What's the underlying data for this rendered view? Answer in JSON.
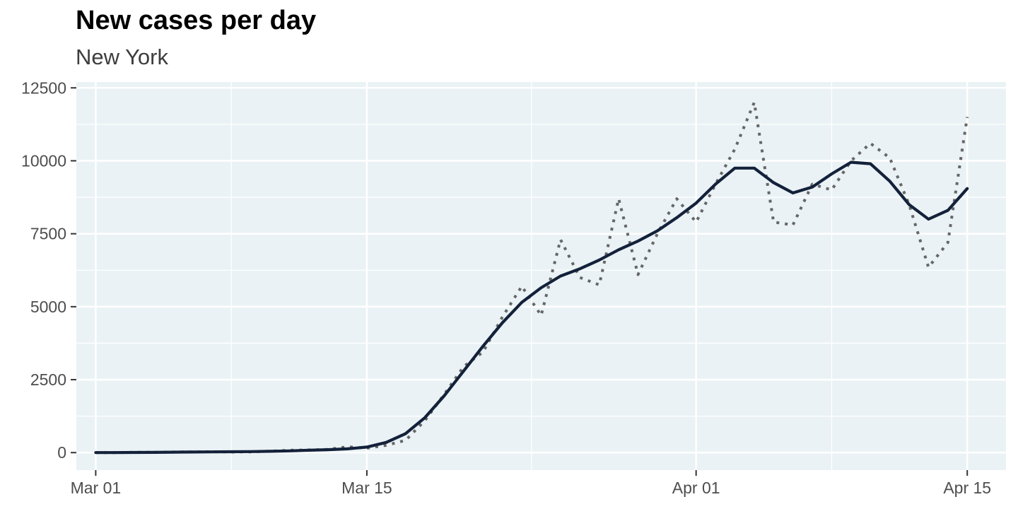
{
  "chart_data": {
    "type": "line",
    "title": "New cases per day",
    "subtitle": "New York",
    "xlabel": "",
    "ylabel": "",
    "ylim": [
      -600,
      12700
    ],
    "xlim": [
      "2020-02-29",
      "2020-04-17"
    ],
    "x_ticks": [
      {
        "date": "2020-03-01",
        "label": "Mar 01"
      },
      {
        "date": "2020-03-15",
        "label": "Mar 15"
      },
      {
        "date": "2020-04-01",
        "label": "Apr 01"
      },
      {
        "date": "2020-04-15",
        "label": "Apr 15"
      }
    ],
    "y_ticks": [
      0,
      2500,
      5000,
      7500,
      10000,
      12500
    ],
    "grid": true,
    "legend": "none",
    "colors": {
      "panel": "#eaf2f5",
      "grid": "#ffffff",
      "smoothed": "#13213a",
      "daily": "#666666"
    },
    "x": [
      "2020-03-01",
      "2020-03-02",
      "2020-03-03",
      "2020-03-04",
      "2020-03-05",
      "2020-03-06",
      "2020-03-07",
      "2020-03-08",
      "2020-03-09",
      "2020-03-10",
      "2020-03-11",
      "2020-03-12",
      "2020-03-13",
      "2020-03-14",
      "2020-03-15",
      "2020-03-16",
      "2020-03-17",
      "2020-03-18",
      "2020-03-19",
      "2020-03-20",
      "2020-03-21",
      "2020-03-22",
      "2020-03-23",
      "2020-03-24",
      "2020-03-25",
      "2020-03-26",
      "2020-03-27",
      "2020-03-28",
      "2020-03-29",
      "2020-03-30",
      "2020-03-31",
      "2020-04-01",
      "2020-04-02",
      "2020-04-03",
      "2020-04-04",
      "2020-04-05",
      "2020-04-06",
      "2020-04-07",
      "2020-04-08",
      "2020-04-09",
      "2020-04-10",
      "2020-04-11",
      "2020-04-12",
      "2020-04-13",
      "2020-04-14",
      "2020-04-15"
    ],
    "series": [
      {
        "style": "solid",
        "values": [
          0,
          0,
          5,
          8,
          15,
          20,
          25,
          30,
          35,
          45,
          60,
          80,
          100,
          130,
          190,
          350,
          650,
          1200,
          1950,
          2800,
          3650,
          4450,
          5150,
          5650,
          6050,
          6300,
          6600,
          6950,
          7250,
          7600,
          8050,
          8550,
          9200,
          9750,
          9750,
          9250,
          8900,
          9100,
          9550,
          9950,
          9900,
          9300,
          8500,
          8000,
          8300,
          9050
        ]
      },
      {
        "style": "dotted",
        "values": [
          0,
          0,
          10,
          10,
          20,
          25,
          30,
          20,
          25,
          50,
          80,
          90,
          110,
          200,
          150,
          250,
          420,
          1100,
          2000,
          2950,
          3450,
          4650,
          5700,
          4700,
          7300,
          6000,
          5750,
          8700,
          6100,
          7500,
          8700,
          7900,
          9200,
          10400,
          12000,
          7900,
          7800,
          9200,
          9000,
          10000,
          10600,
          10100,
          8500,
          6350,
          7200,
          11500
        ]
      }
    ]
  }
}
